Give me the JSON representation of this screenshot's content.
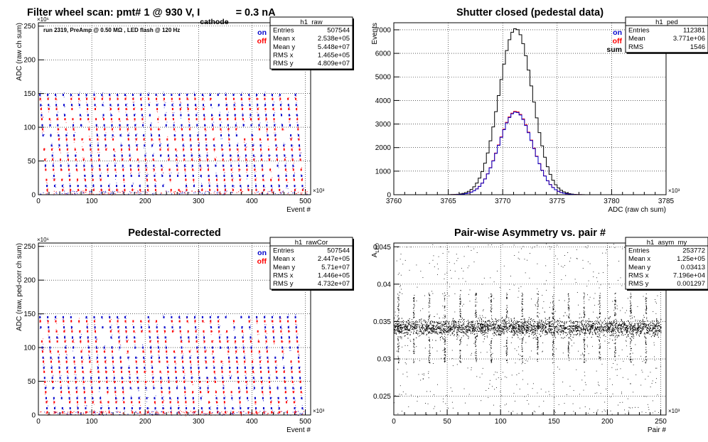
{
  "chart_data": [
    {
      "id": "raw",
      "type": "scatter",
      "title": "Filter wheel scan: pmt#   1 @   930 V, I",
      "title_sub": "cathode",
      "title_tail": "= 0.3 nA",
      "subtitle": "run 2319, PreAmp @ 0.50 MΩ , LED flash @  120 Hz",
      "xlabel": "Event #",
      "ylabel": "ADC (raw ch sum)",
      "xlim": [
        0,
        510
      ],
      "ylim": [
        0,
        255
      ],
      "x_exponent": "×10³",
      "y_exponent": "×10⁶",
      "x_ticks": [
        0,
        100,
        200,
        300,
        400,
        500
      ],
      "y_ticks": [
        0,
        50,
        100,
        150,
        200,
        250
      ],
      "grid": true,
      "legend": [
        {
          "label": "on",
          "color": "#0000cc"
        },
        {
          "label": "off",
          "color": "#ff0000"
        }
      ],
      "statbox": {
        "name": "h1_raw",
        "rows": [
          [
            "Entries",
            "507544"
          ],
          [
            "Mean x",
            "2.538e+05"
          ],
          [
            "Mean y",
            "5.448e+07"
          ],
          [
            "RMS x",
            "1.465e+05"
          ],
          [
            "RMS y",
            "4.809e+07"
          ]
        ]
      },
      "levels": {
        "on": [
          148,
          133,
          118,
          103,
          88,
          73,
          58,
          43,
          28,
          13
        ],
        "off": [
          142,
          127,
          112,
          97,
          82,
          67,
          52,
          37,
          22,
          7
        ]
      },
      "period": 14.5
    },
    {
      "id": "ped",
      "type": "line",
      "title": "Shutter closed (pedestal data)",
      "xlabel": "ADC (raw ch sum)",
      "ylabel": "Events",
      "xlim": [
        3760,
        3785
      ],
      "ylim": [
        0,
        7300
      ],
      "x_exponent": "×10³",
      "x_ticks": [
        3760,
        3765,
        3770,
        3775,
        3780,
        3785
      ],
      "y_ticks": [
        0,
        1000,
        2000,
        3000,
        4000,
        5000,
        6000,
        7000
      ],
      "grid": true,
      "legend": [
        {
          "label": "on",
          "color": "#0000cc"
        },
        {
          "label": "off",
          "color": "#ff0000"
        },
        {
          "label": "sum",
          "color": "#000000"
        }
      ],
      "statbox": {
        "name": "h1_ped",
        "rows": [
          [
            "Entries",
            "112381"
          ],
          [
            "Mean",
            "3.771e+06"
          ],
          [
            "RMS",
            "1546"
          ]
        ]
      },
      "series": [
        {
          "name": "sum",
          "color": "#000000",
          "mean": 3771.2,
          "sigma": 1.55,
          "peak": 7050
        },
        {
          "name": "off",
          "color": "#ff0000",
          "mean": 3771.2,
          "sigma": 1.55,
          "peak": 3540
        },
        {
          "name": "on",
          "color": "#0000cc",
          "mean": 3771.2,
          "sigma": 1.55,
          "peak": 3510
        }
      ]
    },
    {
      "id": "cor",
      "type": "scatter",
      "title": "Pedestal-corrected",
      "xlabel": "Event #",
      "ylabel": "ADC (raw, ped-corr ch sum)",
      "xlim": [
        0,
        510
      ],
      "ylim": [
        0,
        255
      ],
      "x_exponent": "×10³",
      "y_exponent": "×10⁶",
      "x_ticks": [
        0,
        100,
        200,
        300,
        400,
        500
      ],
      "y_ticks": [
        0,
        50,
        100,
        150,
        200,
        250
      ],
      "grid": true,
      "legend": [
        {
          "label": "on",
          "color": "#0000cc"
        },
        {
          "label": "off",
          "color": "#ff0000"
        }
      ],
      "statbox": {
        "name": "h1_rawCor",
        "rows": [
          [
            "Entries",
            "507544"
          ],
          [
            "Mean x",
            "2.447e+05"
          ],
          [
            "Mean y",
            "5.71e+07"
          ],
          [
            "RMS x",
            "1.446e+05"
          ],
          [
            "RMS y",
            "4.732e+07"
          ]
        ]
      },
      "levels": {
        "on": [
          145,
          130,
          115,
          100,
          85,
          70,
          55,
          40,
          25,
          10
        ],
        "off": [
          139,
          124,
          109,
          94,
          79,
          64,
          49,
          34,
          19,
          4
        ]
      },
      "period": 14.5
    },
    {
      "id": "asym",
      "type": "scatter",
      "title": "Pair-wise Asymmetry vs. pair #",
      "xlabel": "Pair #",
      "ylabel": "A",
      "ylabel_sub": "LED",
      "xlim": [
        0,
        255
      ],
      "ylim": [
        0.0225,
        0.0455
      ],
      "x_exponent": "×10³",
      "x_ticks": [
        0,
        50,
        100,
        150,
        200,
        250
      ],
      "y_ticks": [
        0.025,
        0.03,
        0.035,
        0.04,
        0.045
      ],
      "y_tick_labels": [
        "0.025",
        "0.03",
        "0.035",
        "0.04",
        "0.045"
      ],
      "grid": true,
      "statbox": {
        "name": "h1_asym_my",
        "rows": [
          [
            "Entries",
            "253772"
          ],
          [
            "Mean x",
            "1.25e+05"
          ],
          [
            "Mean y",
            "0.03413"
          ],
          [
            "RMS x",
            "7.196e+04"
          ],
          [
            "RMS y",
            "0.001297"
          ]
        ]
      },
      "band": {
        "center": 0.0342,
        "half_width": 0.0012
      },
      "spike_period": 14.5,
      "x_end": 250
    }
  ]
}
